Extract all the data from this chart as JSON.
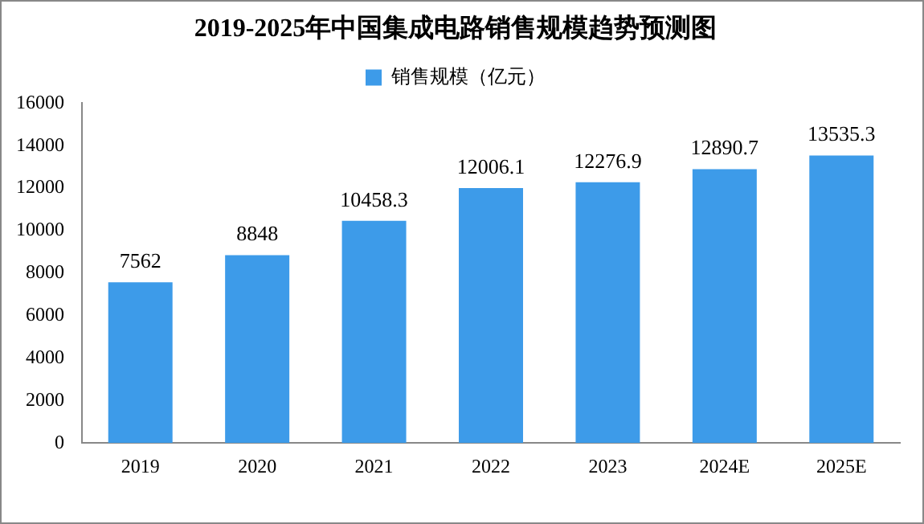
{
  "chart_data": {
    "type": "bar",
    "title": "2019-2025年中国集成电路销售规模趋势预测图",
    "categories": [
      "2019",
      "2020",
      "2021",
      "2022",
      "2023",
      "2024E",
      "2025E"
    ],
    "series": [
      {
        "name": "销售规模（亿元）",
        "color": "#3d9be9",
        "values": [
          7562,
          8848,
          10458.3,
          12006.1,
          12276.9,
          12890.7,
          13535.3
        ]
      }
    ],
    "ylim": [
      0,
      16000
    ],
    "yticks": [
      0,
      2000,
      4000,
      6000,
      8000,
      10000,
      12000,
      14000,
      16000
    ],
    "grid": false,
    "legend": "top",
    "data_labels": true
  }
}
